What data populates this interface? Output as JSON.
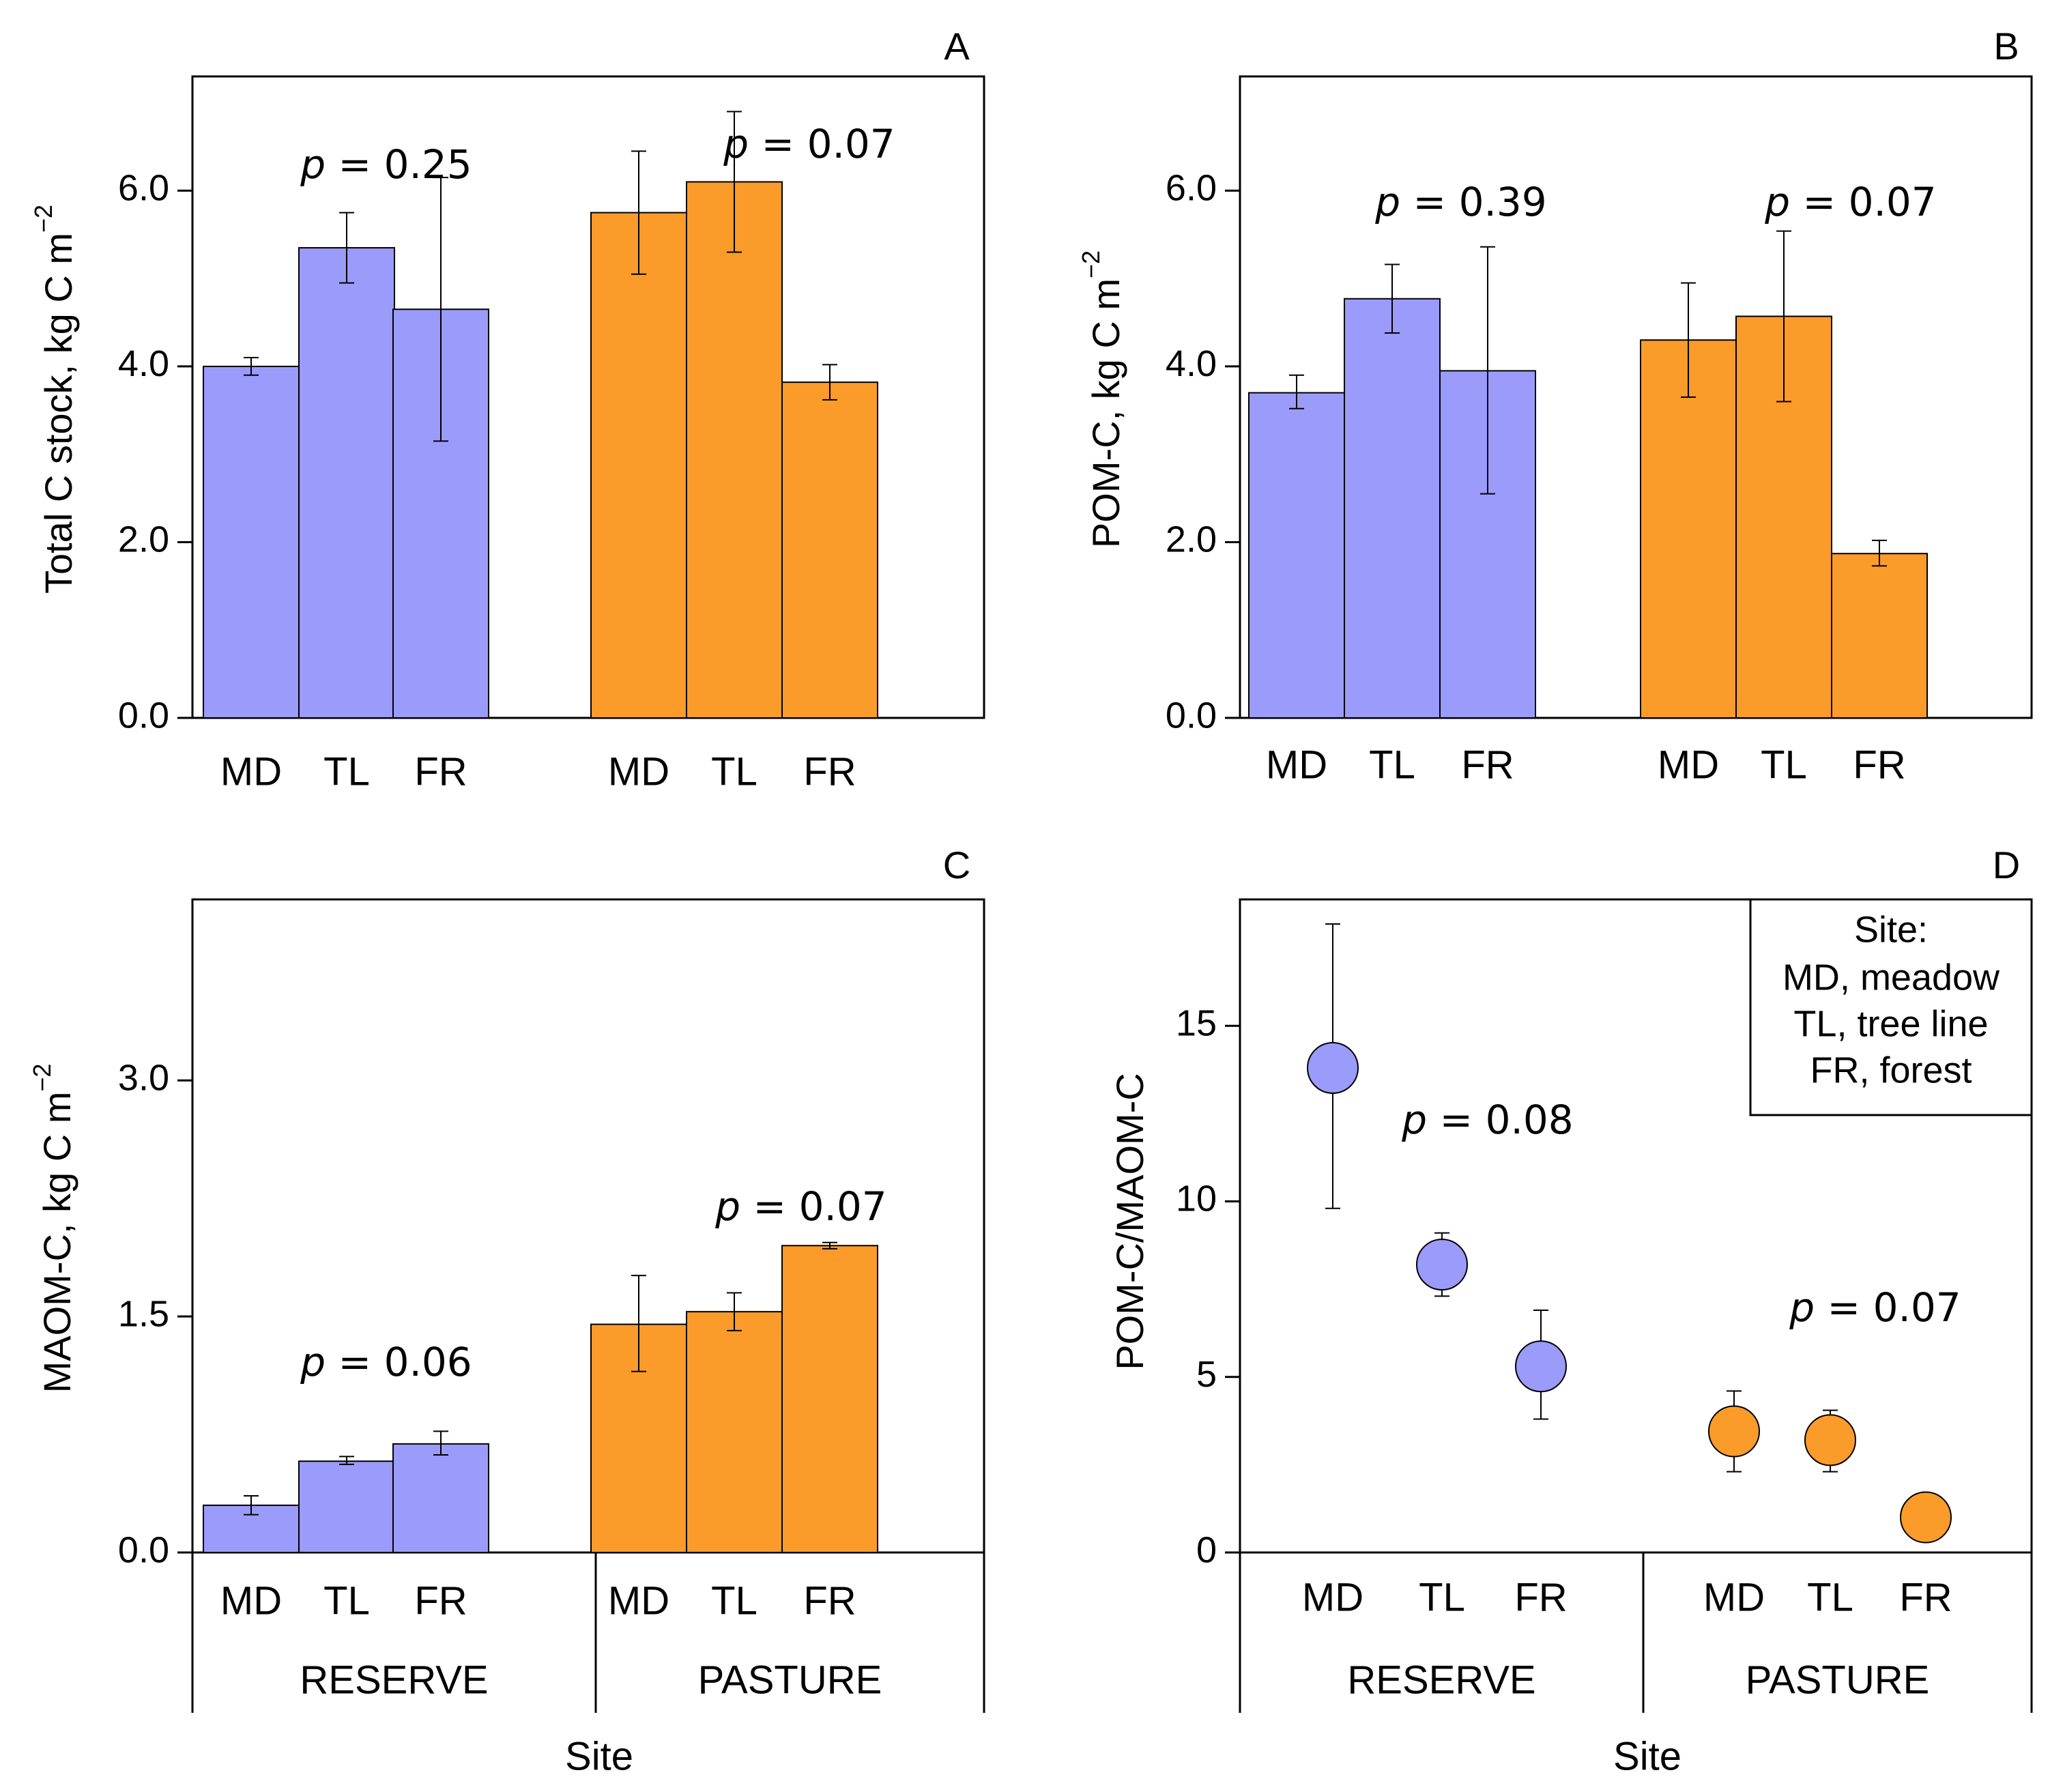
{
  "colors": {
    "reserve": "#9b9bfc",
    "pasture": "#fb9b2a",
    "axis": "#000000"
  },
  "groups": [
    "RESERVE",
    "PASTURE"
  ],
  "xlabel": "Site",
  "legend": {
    "title": "Site:",
    "entries": [
      "MD, meadow",
      "TL, tree line",
      "FR, forest"
    ],
    "position": "top-right"
  },
  "chart_data": [
    {
      "panel": "A",
      "type": "bar",
      "ylabel": "Total C stock, kg C m",
      "ylabel_sup": "−2",
      "ylim": [
        0,
        7.3
      ],
      "yticks": [
        0,
        2,
        4,
        6
      ],
      "ytick_labels": [
        "0.0",
        "2.0",
        "4.0",
        "6.0"
      ],
      "categories": [
        "MD",
        "TL",
        "FR"
      ],
      "series": [
        {
          "name": "RESERVE",
          "values": [
            4.0,
            5.35,
            4.65
          ],
          "err_low": [
            3.9,
            4.95,
            3.15
          ],
          "err_high": [
            4.1,
            5.75,
            6.15
          ],
          "p_label": "p",
          "p_value": " = 0.25"
        },
        {
          "name": "PASTURE",
          "values": [
            5.75,
            6.1,
            3.82
          ],
          "err_low": [
            5.05,
            5.3,
            3.62
          ],
          "err_high": [
            6.45,
            6.9,
            4.02
          ],
          "p_label": "p",
          "p_value": " = 0.07"
        }
      ]
    },
    {
      "panel": "B",
      "type": "bar",
      "ylabel": "POM-C, kg C m",
      "ylabel_sup": "−2",
      "ylim": [
        0,
        7.3
      ],
      "yticks": [
        0,
        2,
        4,
        6
      ],
      "ytick_labels": [
        "0.0",
        "2.0",
        "4.0",
        "6.0"
      ],
      "categories": [
        "MD",
        "TL",
        "FR"
      ],
      "series": [
        {
          "name": "RESERVE",
          "values": [
            3.7,
            4.77,
            3.95
          ],
          "err_low": [
            3.52,
            4.38,
            2.55
          ],
          "err_high": [
            3.9,
            5.16,
            5.36
          ],
          "p_label": "p",
          "p_value": " = 0.39"
        },
        {
          "name": "PASTURE",
          "values": [
            4.3,
            4.57,
            1.87
          ],
          "err_low": [
            3.65,
            3.6,
            1.73
          ],
          "err_high": [
            4.95,
            5.54,
            2.02
          ],
          "p_label": "p",
          "p_value": " = 0.07"
        }
      ]
    },
    {
      "panel": "C",
      "type": "bar",
      "ylabel": "MAOM-C, kg C m",
      "ylabel_sup": "−2",
      "ylim": [
        0,
        4.15
      ],
      "yticks": [
        0,
        1.5,
        3
      ],
      "ytick_labels": [
        "0.0",
        "1.5",
        "3.0"
      ],
      "categories": [
        "MD",
        "TL",
        "FR"
      ],
      "series": [
        {
          "name": "RESERVE",
          "values": [
            0.3,
            0.58,
            0.69
          ],
          "err_low": [
            0.24,
            0.56,
            0.62
          ],
          "err_high": [
            0.36,
            0.61,
            0.77
          ],
          "p_label": "p",
          "p_value": " = 0.06"
        },
        {
          "name": "PASTURE",
          "values": [
            1.45,
            1.53,
            1.95
          ],
          "err_low": [
            1.15,
            1.41,
            1.93
          ],
          "err_high": [
            1.76,
            1.65,
            1.97
          ],
          "p_label": "p",
          "p_value": " = 0.07"
        }
      ]
    },
    {
      "panel": "D",
      "type": "scatter",
      "ylabel": "POM-C/MAOM-C",
      "ylim": [
        0,
        18.6
      ],
      "yticks": [
        0,
        5,
        10,
        15
      ],
      "ytick_labels": [
        "0",
        "5",
        "10",
        "15"
      ],
      "categories": [
        "MD",
        "TL",
        "FR"
      ],
      "series": [
        {
          "name": "RESERVE",
          "values": [
            13.8,
            8.2,
            5.3
          ],
          "err_low": [
            9.8,
            7.3,
            3.8
          ],
          "err_high": [
            17.9,
            9.1,
            6.9
          ],
          "p_label": "p",
          "p_value": " = 0.08"
        },
        {
          "name": "PASTURE",
          "values": [
            3.45,
            3.2,
            1.0
          ],
          "err_low": [
            2.3,
            2.3,
            null
          ],
          "err_high": [
            4.6,
            4.05,
            null
          ],
          "p_label": "p",
          "p_value": " = 0.07"
        }
      ]
    }
  ]
}
